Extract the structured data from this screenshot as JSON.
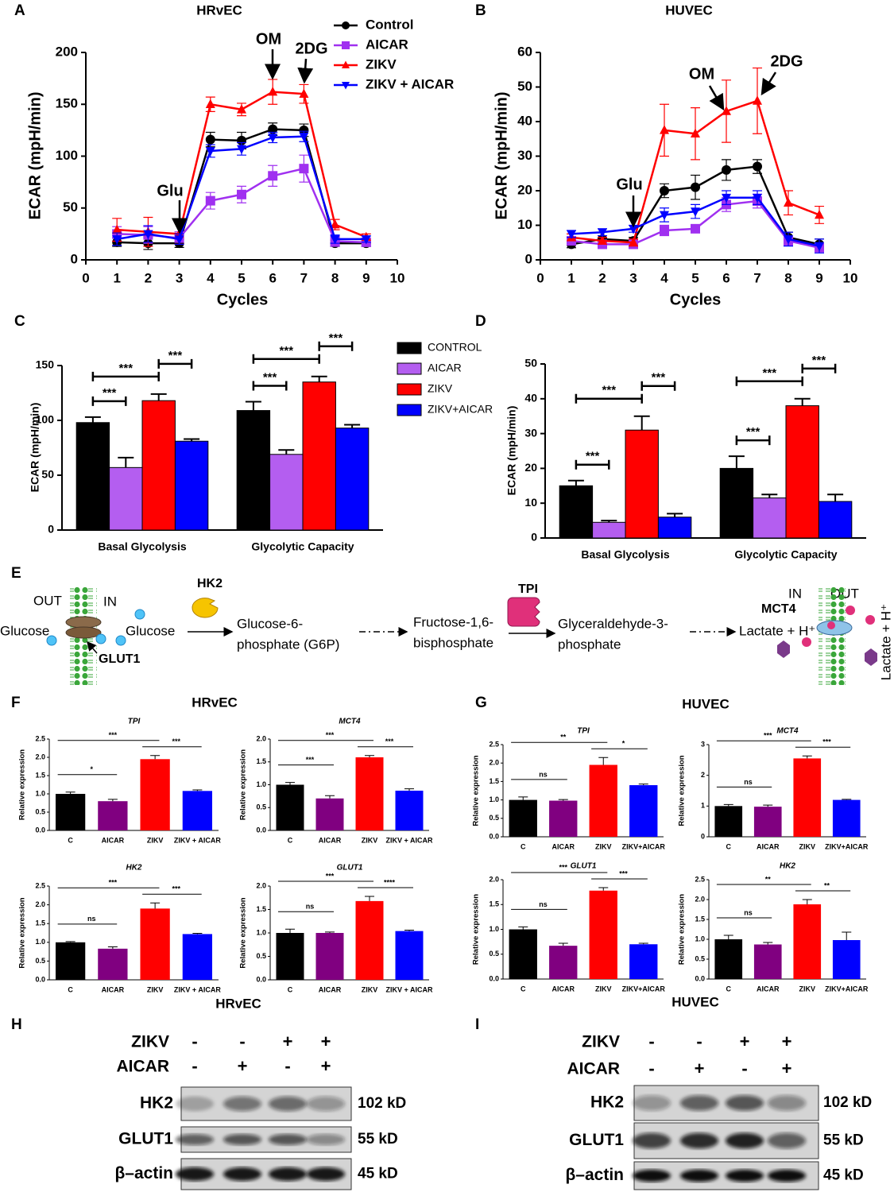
{
  "chart_data": [
    {
      "panel": "A",
      "type": "line",
      "title": "HRvEC",
      "xlabel": "Cycles",
      "ylabel": "ECAR (mpH/min)",
      "x": [
        1,
        2,
        3,
        4,
        5,
        6,
        7,
        8,
        9
      ],
      "xlim": [
        0,
        10
      ],
      "xticks": [
        0,
        1,
        2,
        3,
        4,
        5,
        6,
        7,
        8,
        9,
        10
      ],
      "ylim": [
        0,
        200
      ],
      "yticks": [
        0,
        50,
        100,
        150,
        200
      ],
      "annotations": [
        "Glu",
        "OM",
        "2DG"
      ],
      "series": [
        {
          "name": "Control",
          "color": "#000000",
          "marker": "circle",
          "values": [
            17,
            16,
            16,
            116,
            115,
            126,
            125,
            16,
            16
          ],
          "errors": [
            4,
            6,
            4,
            7,
            8,
            6,
            6,
            3,
            3
          ]
        },
        {
          "name": "AICAR",
          "color": "#a030f0",
          "marker": "square",
          "values": [
            25,
            24,
            21,
            57,
            63,
            81,
            88,
            18,
            17
          ],
          "errors": [
            7,
            8,
            6,
            8,
            8,
            10,
            13,
            5,
            4
          ]
        },
        {
          "name": "ZIKV",
          "color": "#ff0000",
          "marker": "triangle-up",
          "values": [
            29,
            27,
            25,
            150,
            145,
            162,
            160,
            34,
            22
          ],
          "errors": [
            11,
            14,
            10,
            7,
            6,
            12,
            9,
            5,
            3
          ]
        },
        {
          "name": "ZIKV + AICAR",
          "color": "#0000ff",
          "marker": "triangle-down",
          "values": [
            20,
            25,
            20,
            105,
            107,
            118,
            119,
            20,
            20
          ],
          "errors": [
            6,
            8,
            5,
            6,
            6,
            5,
            5,
            4,
            3
          ]
        }
      ]
    },
    {
      "panel": "B",
      "type": "line",
      "title": "HUVEC",
      "xlabel": "Cycles",
      "ylabel": "ECAR (mpH/min)",
      "x": [
        1,
        2,
        3,
        4,
        5,
        6,
        7,
        8,
        9
      ],
      "xlim": [
        0,
        10
      ],
      "xticks": [
        0,
        1,
        2,
        3,
        4,
        5,
        6,
        7,
        8,
        9,
        10
      ],
      "ylim": [
        0,
        60
      ],
      "yticks": [
        0,
        10,
        20,
        30,
        40,
        50,
        60
      ],
      "annotations": [
        "Glu",
        "OM",
        "2DG"
      ],
      "series": [
        {
          "color": "#000000",
          "marker": "circle",
          "values": [
            4.5,
            6,
            5.5,
            20,
            21,
            26,
            27,
            6.5,
            4.5
          ],
          "errors": [
            1,
            1,
            1,
            2,
            3.5,
            3,
            2,
            1.5,
            1.5
          ]
        },
        {
          "color": "#a030f0",
          "marker": "square",
          "values": [
            5.5,
            4.5,
            4.5,
            8.5,
            9,
            16,
            17,
            5.5,
            3.5
          ],
          "errors": [
            1,
            1,
            1,
            1.5,
            1,
            2,
            2,
            1,
            1
          ]
        },
        {
          "color": "#ff0000",
          "marker": "triangle-up",
          "values": [
            6.5,
            5.5,
            5,
            37.5,
            36.5,
            43,
            46,
            16.5,
            13
          ],
          "errors": [
            1,
            1,
            1,
            7.5,
            7.5,
            9,
            9.5,
            3.5,
            2.5
          ]
        },
        {
          "color": "#0000ff",
          "marker": "triangle-down",
          "values": [
            7.5,
            8,
            9,
            13,
            14,
            18,
            18,
            6,
            4
          ],
          "errors": [
            1,
            1,
            1,
            2,
            2,
            2,
            2,
            2,
            2
          ]
        }
      ]
    },
    {
      "panel": "C",
      "type": "bar",
      "ylabel": "ECAR (mpH/min)",
      "categories": [
        "Basal Glycolysis",
        "Glycolytic Capacity"
      ],
      "ylim": [
        0,
        150
      ],
      "yticks": [
        0,
        50,
        100,
        150
      ],
      "significance": [
        [
          "***",
          "***",
          "***"
        ],
        [
          "***",
          "***",
          "***"
        ]
      ],
      "series": [
        {
          "name": "CONTROL",
          "color": "#000000",
          "values": [
            98,
            109
          ],
          "errors": [
            5,
            8
          ]
        },
        {
          "name": "AICAR",
          "color": "#b45ef0",
          "values": [
            57,
            69
          ],
          "errors": [
            9,
            4
          ]
        },
        {
          "name": "ZIKV",
          "color": "#ff0000",
          "values": [
            118,
            135
          ],
          "errors": [
            6,
            5
          ]
        },
        {
          "name": "ZIKV+AICAR",
          "color": "#0000ff",
          "values": [
            81,
            93
          ],
          "errors": [
            2,
            3
          ]
        }
      ]
    },
    {
      "panel": "D",
      "type": "bar",
      "ylabel": "ECAR (mpH/min)",
      "categories": [
        "Basal Glycolysis",
        "Glycolytic Capacity"
      ],
      "ylim": [
        0,
        50
      ],
      "yticks": [
        0,
        10,
        20,
        30,
        40,
        50
      ],
      "significance": [
        [
          "***",
          "***",
          "***"
        ],
        [
          "***",
          "***",
          "***"
        ]
      ],
      "series": [
        {
          "color": "#000000",
          "values": [
            15,
            20
          ],
          "errors": [
            1.5,
            3.5
          ]
        },
        {
          "color": "#b45ef0",
          "values": [
            4.5,
            11.5
          ],
          "errors": [
            0.5,
            1
          ]
        },
        {
          "color": "#ff0000",
          "values": [
            31,
            38
          ],
          "errors": [
            4,
            2
          ]
        },
        {
          "color": "#0000ff",
          "values": [
            6,
            10.5
          ],
          "errors": [
            1,
            2
          ]
        }
      ]
    },
    {
      "type": "bar",
      "title": "TPI",
      "ylabel": "Relative expression",
      "categories": [
        "C",
        "AICAR",
        "ZIKV",
        "ZIKV + AICAR"
      ],
      "colors": [
        "#000000",
        "#800080",
        "#ff0000",
        "#0000ff"
      ],
      "values": [
        1.0,
        0.8,
        1.95,
        1.08
      ],
      "errors": [
        0.05,
        0.05,
        0.1,
        0.03
      ],
      "ylim": [
        0,
        2.5
      ],
      "yticks": [
        {
          "value": 0,
          "label": "0.0"
        },
        {
          "value": 0.5,
          "label": "0.5"
        },
        {
          "value": 1,
          "label": "1.0"
        },
        {
          "value": 1.5,
          "label": "1.5"
        },
        {
          "value": 2,
          "label": "2.0"
        },
        {
          "value": 2.5,
          "label": "2.5"
        }
      ],
      "significance": [
        "*",
        "***",
        "***"
      ]
    },
    {
      "type": "bar",
      "title": "MCT4",
      "ylabel": "Relative expression",
      "categories": [
        "C",
        "AICAR",
        "ZIKV",
        "ZIKV + AICAR"
      ],
      "colors": [
        "#000000",
        "#800080",
        "#ff0000",
        "#0000ff"
      ],
      "values": [
        1.0,
        0.7,
        1.6,
        0.87
      ],
      "errors": [
        0.05,
        0.06,
        0.04,
        0.04
      ],
      "ylim": [
        0,
        2
      ],
      "yticks": [
        {
          "value": 0,
          "label": "0.0"
        },
        {
          "value": 0.5,
          "label": "0.5"
        },
        {
          "value": 1,
          "label": "1.0"
        },
        {
          "value": 1.5,
          "label": "1.5"
        },
        {
          "value": 2,
          "label": "2.0"
        }
      ],
      "significance": [
        "***",
        "***",
        "***"
      ]
    },
    {
      "type": "bar",
      "title": "HK2",
      "ylabel": "Relative expression",
      "categories": [
        "C",
        "AICAR",
        "ZIKV",
        "ZIKV + AICAR"
      ],
      "colors": [
        "#000000",
        "#800080",
        "#ff0000",
        "#0000ff"
      ],
      "values": [
        1.0,
        0.83,
        1.9,
        1.22
      ],
      "errors": [
        0.02,
        0.05,
        0.15,
        0.02
      ],
      "ylim": [
        0,
        2.5
      ],
      "yticks": [
        {
          "value": 0,
          "label": "0.0"
        },
        {
          "value": 0.5,
          "label": "0.5"
        },
        {
          "value": 1,
          "label": "1.0"
        },
        {
          "value": 1.5,
          "label": "1.5"
        },
        {
          "value": 2,
          "label": "2.0"
        },
        {
          "value": 2.5,
          "label": "2.5"
        }
      ],
      "significance": [
        "ns",
        "***",
        "***"
      ]
    },
    {
      "type": "bar",
      "title": "GLUT1",
      "ylabel": "Relative expression",
      "categories": [
        "C",
        "AICAR",
        "ZIKV",
        "ZIKV + AICAR"
      ],
      "colors": [
        "#000000",
        "#800080",
        "#ff0000",
        "#0000ff"
      ],
      "values": [
        1.0,
        1.0,
        1.68,
        1.04
      ],
      "errors": [
        0.08,
        0.02,
        0.1,
        0.02
      ],
      "ylim": [
        0,
        2
      ],
      "yticks": [
        {
          "value": 0,
          "label": "0.0"
        },
        {
          "value": 0.5,
          "label": "0.5"
        },
        {
          "value": 1,
          "label": "1.0"
        },
        {
          "value": 1.5,
          "label": "1.5"
        },
        {
          "value": 2,
          "label": "2.0"
        }
      ],
      "significance": [
        "ns",
        "***",
        "****"
      ]
    },
    {
      "type": "bar",
      "title": "TPI",
      "ylabel": "Relative expression",
      "categories": [
        "C",
        "AICAR",
        "ZIKV",
        "ZIKV+AICAR"
      ],
      "colors": [
        "#000000",
        "#800080",
        "#ff0000",
        "#0000ff"
      ],
      "values": [
        1.0,
        0.98,
        1.95,
        1.4
      ],
      "errors": [
        0.08,
        0.03,
        0.2,
        0.03
      ],
      "ylim": [
        0,
        2.5
      ],
      "yticks": [
        {
          "value": 0,
          "label": "0.0"
        },
        {
          "value": 0.5,
          "label": "0.5"
        },
        {
          "value": 1,
          "label": "1.0"
        },
        {
          "value": 1.5,
          "label": "1.5"
        },
        {
          "value": 2,
          "label": "2.0"
        },
        {
          "value": 2.5,
          "label": "2.5"
        }
      ],
      "significance": [
        "ns",
        "**",
        "*"
      ]
    },
    {
      "type": "bar",
      "title": "MCT4",
      "ylabel": "Relative expression",
      "categories": [
        "C",
        "AICAR",
        "ZIKV",
        "ZIKV+AICAR"
      ],
      "colors": [
        "#000000",
        "#800080",
        "#ff0000",
        "#0000ff"
      ],
      "values": [
        1.0,
        0.98,
        2.55,
        1.2
      ],
      "errors": [
        0.05,
        0.05,
        0.08,
        0.02
      ],
      "ylim": [
        0,
        3
      ],
      "yticks": [
        0,
        1,
        2,
        3
      ],
      "significance": [
        "ns",
        "***",
        "***"
      ]
    },
    {
      "type": "bar",
      "title": "GLUT1",
      "ylabel": "Relative expression",
      "categories": [
        "C",
        "AICAR",
        "ZIKV",
        "ZIKV+AICAR"
      ],
      "colors": [
        "#000000",
        "#800080",
        "#ff0000",
        "#0000ff"
      ],
      "values": [
        1.0,
        0.67,
        1.78,
        0.7
      ],
      "errors": [
        0.05,
        0.05,
        0.06,
        0.02
      ],
      "ylim": [
        0,
        2
      ],
      "yticks": [
        {
          "value": 0,
          "label": "0.0"
        },
        {
          "value": 0.5,
          "label": "0.5"
        },
        {
          "value": 1,
          "label": "1.0"
        },
        {
          "value": 1.5,
          "label": "1.5"
        },
        {
          "value": 2,
          "label": "2.0"
        }
      ],
      "significance": [
        "ns",
        "***",
        "***"
      ]
    },
    {
      "type": "bar",
      "title": "HK2",
      "ylabel": "Relative expression",
      "categories": [
        "C",
        "AICAR",
        "ZIKV",
        "ZIKV+AICAR"
      ],
      "colors": [
        "#000000",
        "#800080",
        "#ff0000",
        "#0000ff"
      ],
      "values": [
        1.0,
        0.87,
        1.88,
        0.98
      ],
      "errors": [
        0.1,
        0.05,
        0.12,
        0.2
      ],
      "ylim": [
        0,
        2.5
      ],
      "yticks": [
        {
          "value": 0,
          "label": "0.0"
        },
        {
          "value": 0.5,
          "label": "0.5"
        },
        {
          "value": 1,
          "label": "1.0"
        },
        {
          "value": 1.5,
          "label": "1.5"
        },
        {
          "value": 2,
          "label": "2.0"
        },
        {
          "value": 2.5,
          "label": "2.5"
        }
      ],
      "significance": [
        "ns",
        "**",
        "**"
      ]
    }
  ],
  "panel_groups": [
    {
      "panel": "F",
      "title": "HRvEC"
    },
    {
      "panel": "G",
      "title": "HUVEC"
    }
  ],
  "pathway": {
    "panel": "E",
    "out_left": "OUT",
    "in_left": "IN",
    "glucose_out": "Glucose",
    "transporter_left": "GLUT1",
    "glucose_in": "Glucose",
    "enzyme_1": "HK2",
    "g6p": [
      "Glucose-6-",
      "phosphate (G6P)"
    ],
    "f16bp": [
      "Fructose-1,6-",
      "bisphosphate"
    ],
    "enzyme_2": "TPI",
    "g3p": [
      "Glyceraldehyde-3-",
      "phosphate"
    ],
    "lactate_in": "Lactate + H⁺",
    "transporter_right": "MCT4",
    "in_right": "IN",
    "out_right": "OUT",
    "lactate_out": "Lactate + H⁺"
  },
  "blots": [
    {
      "panel": "H",
      "title": "HRvEC",
      "conditions": [
        {
          "name": "ZIKV",
          "signs": [
            "-",
            "-",
            "+",
            "+"
          ]
        },
        {
          "name": "AICAR",
          "signs": [
            "-",
            "+",
            "-",
            "+"
          ]
        }
      ],
      "bands": [
        {
          "name": "HK2",
          "size": "102 kD"
        },
        {
          "name": "GLUT1",
          "size": "55 kD"
        },
        {
          "name": "β–actin",
          "size": "45 kD"
        }
      ]
    },
    {
      "panel": "I",
      "title": "HUVEC",
      "conditions": [
        {
          "name": "ZIKV",
          "signs": [
            "-",
            "-",
            "+",
            "+"
          ]
        },
        {
          "name": "AICAR",
          "signs": [
            "-",
            "+",
            "-",
            "+"
          ]
        }
      ],
      "bands": [
        {
          "name": "HK2",
          "size": "102 kD"
        },
        {
          "name": "GLUT1",
          "size": "55 kD"
        },
        {
          "name": "β–actin",
          "size": "45 kD"
        }
      ]
    }
  ]
}
